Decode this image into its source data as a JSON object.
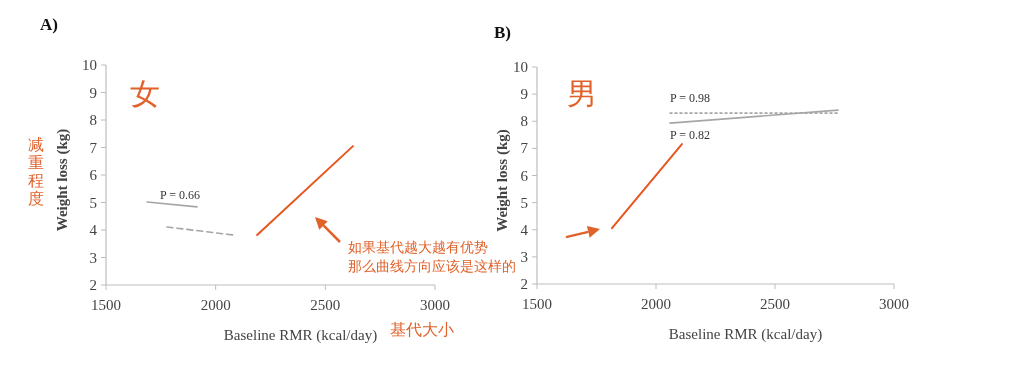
{
  "chart_data": [
    {
      "type": "line",
      "title": "A)",
      "xlabel": "Baseline RMR (kcal/day)",
      "ylabel": "Weight loss (kg)",
      "xlim": [
        1500,
        3000
      ],
      "xticks": [
        1500,
        2000,
        2500,
        3000
      ],
      "ylim": [
        2,
        10
      ],
      "yticks": [
        2,
        3,
        4,
        5,
        6,
        7,
        8,
        9,
        10
      ],
      "series": [
        {
          "color": "#a6a6a6",
          "line_style": "solid",
          "x": [
            1687,
            1915
          ],
          "values": [
            5.02,
            4.84
          ]
        },
        {
          "color": "#a6a6a6",
          "line_style": "dashed",
          "x": [
            1778,
            2079
          ],
          "values": [
            4.11,
            3.82
          ]
        },
        {
          "color": "#e8561f",
          "line_style": "solid",
          "x": [
            2189,
            2626
          ],
          "values": [
            3.82,
            7.05
          ]
        }
      ],
      "annotations": [
        "女",
        "减重程度",
        "基代大小",
        "P = 0.66",
        "如果基代越大越有优势",
        "那么曲线方向应该是这样的"
      ]
    },
    {
      "type": "line",
      "title": "B)",
      "xlabel": "Baseline RMR (kcal/day)",
      "ylabel": "Weight loss (kg)",
      "xlim": [
        1500,
        3000
      ],
      "xticks": [
        1500,
        2000,
        2500,
        3000
      ],
      "ylim": [
        2,
        10
      ],
      "yticks": [
        2,
        3,
        4,
        5,
        6,
        7,
        8,
        9,
        10
      ],
      "series": [
        {
          "color": "#a6a6a6",
          "line_style": "dotted",
          "x": [
            2059,
            2765
          ],
          "values": [
            8.3,
            8.3
          ]
        },
        {
          "color": "#a6a6a6",
          "line_style": "solid",
          "x": [
            2059,
            2765
          ],
          "values": [
            7.93,
            8.41
          ]
        },
        {
          "color": "#e8561f",
          "line_style": "solid",
          "x": [
            1815,
            2109
          ],
          "values": [
            4.06,
            7.16
          ]
        }
      ],
      "annotations": [
        "男",
        "P = 0.98",
        "P = 0.82"
      ]
    }
  ]
}
